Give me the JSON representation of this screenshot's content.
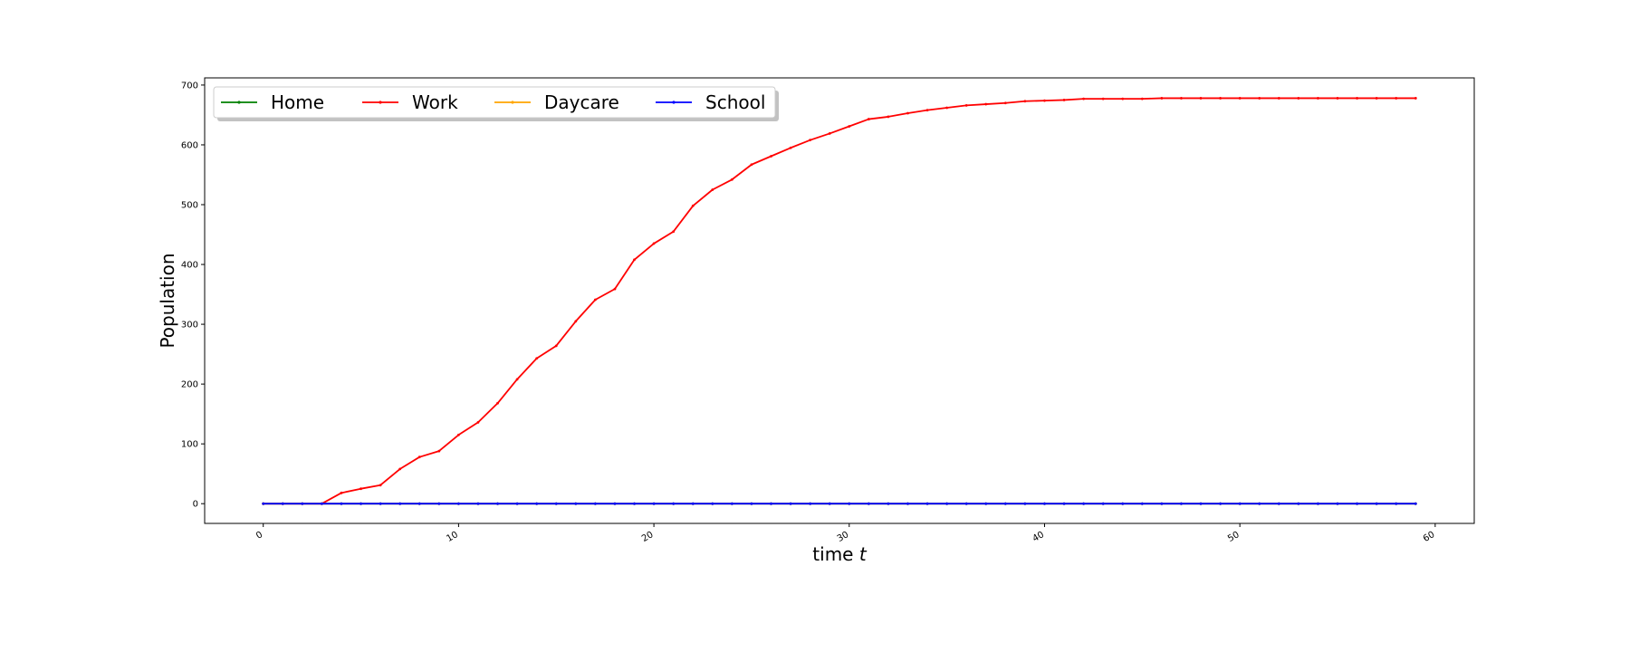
{
  "chart_data": {
    "type": "line",
    "xlabel": "time",
    "xlabel_var": "t",
    "ylabel": "Population",
    "xlim": [
      -3,
      62
    ],
    "ylim": [
      -33,
      712
    ],
    "xticks": [
      0,
      10,
      20,
      30,
      40,
      50,
      60
    ],
    "yticks": [
      0,
      100,
      200,
      300,
      400,
      500,
      600,
      700
    ],
    "grid": false,
    "legend_position": "top-left",
    "x": [
      0,
      1,
      2,
      3,
      4,
      5,
      6,
      7,
      8,
      9,
      10,
      11,
      12,
      13,
      14,
      15,
      16,
      17,
      18,
      19,
      20,
      21,
      22,
      23,
      24,
      25,
      26,
      27,
      28,
      29,
      30,
      31,
      32,
      33,
      34,
      35,
      36,
      37,
      38,
      39,
      40,
      41,
      42,
      43,
      44,
      45,
      46,
      47,
      48,
      49,
      50,
      51,
      52,
      53,
      54,
      55,
      56,
      57,
      58,
      59
    ],
    "series": [
      {
        "name": "Home",
        "color": "#008000",
        "values": [
          0,
          0,
          0,
          0,
          0,
          0,
          0,
          0,
          0,
          0,
          0,
          0,
          0,
          0,
          0,
          0,
          0,
          0,
          0,
          0,
          0,
          0,
          0,
          0,
          0,
          0,
          0,
          0,
          0,
          0,
          0,
          0,
          0,
          0,
          0,
          0,
          0,
          0,
          0,
          0,
          0,
          0,
          0,
          0,
          0,
          0,
          0,
          0,
          0,
          0,
          0,
          0,
          0,
          0,
          0,
          0,
          0,
          0,
          0,
          0
        ]
      },
      {
        "name": "Work",
        "color": "#ff0000",
        "values": [
          0,
          0,
          0,
          0,
          18,
          25,
          31,
          58,
          78,
          88,
          115,
          136,
          168,
          208,
          243,
          264,
          305,
          341,
          359,
          408,
          435,
          455,
          498,
          525,
          542,
          567,
          581,
          595,
          608,
          619,
          631,
          643,
          647,
          653,
          658,
          662,
          666,
          668,
          670,
          673,
          674,
          675,
          677,
          677,
          677,
          677,
          678,
          678,
          678,
          678,
          678,
          678,
          678,
          678,
          678,
          678,
          678,
          678,
          678,
          678
        ]
      },
      {
        "name": "Daycare",
        "color": "#ffa500",
        "values": [
          0,
          0,
          0,
          0,
          0,
          0,
          0,
          0,
          0,
          0,
          0,
          0,
          0,
          0,
          0,
          0,
          0,
          0,
          0,
          0,
          0,
          0,
          0,
          0,
          0,
          0,
          0,
          0,
          0,
          0,
          0,
          0,
          0,
          0,
          0,
          0,
          0,
          0,
          0,
          0,
          0,
          0,
          0,
          0,
          0,
          0,
          0,
          0,
          0,
          0,
          0,
          0,
          0,
          0,
          0,
          0,
          0,
          0,
          0,
          0
        ]
      },
      {
        "name": "School",
        "color": "#0000ff",
        "values": [
          0,
          0,
          0,
          0,
          0,
          0,
          0,
          0,
          0,
          0,
          0,
          0,
          0,
          0,
          0,
          0,
          0,
          0,
          0,
          0,
          0,
          0,
          0,
          0,
          0,
          0,
          0,
          0,
          0,
          0,
          0,
          0,
          0,
          0,
          0,
          0,
          0,
          0,
          0,
          0,
          0,
          0,
          0,
          0,
          0,
          0,
          0,
          0,
          0,
          0,
          0,
          0,
          0,
          0,
          0,
          0,
          0,
          0,
          0,
          0
        ]
      }
    ]
  }
}
